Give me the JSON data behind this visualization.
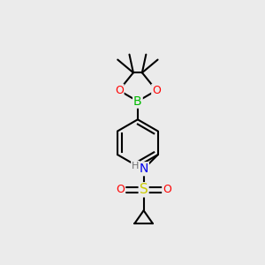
{
  "bg_color": "#ebebeb",
  "bond_color": "#000000",
  "bond_width": 1.5,
  "atom_colors": {
    "B": "#00bb00",
    "O": "#ff0000",
    "N": "#0000ee",
    "S": "#cccc00",
    "C": "#000000",
    "H": "#707070"
  },
  "font_size": 9,
  "fig_size": [
    3.0,
    3.0
  ],
  "dpi": 100
}
